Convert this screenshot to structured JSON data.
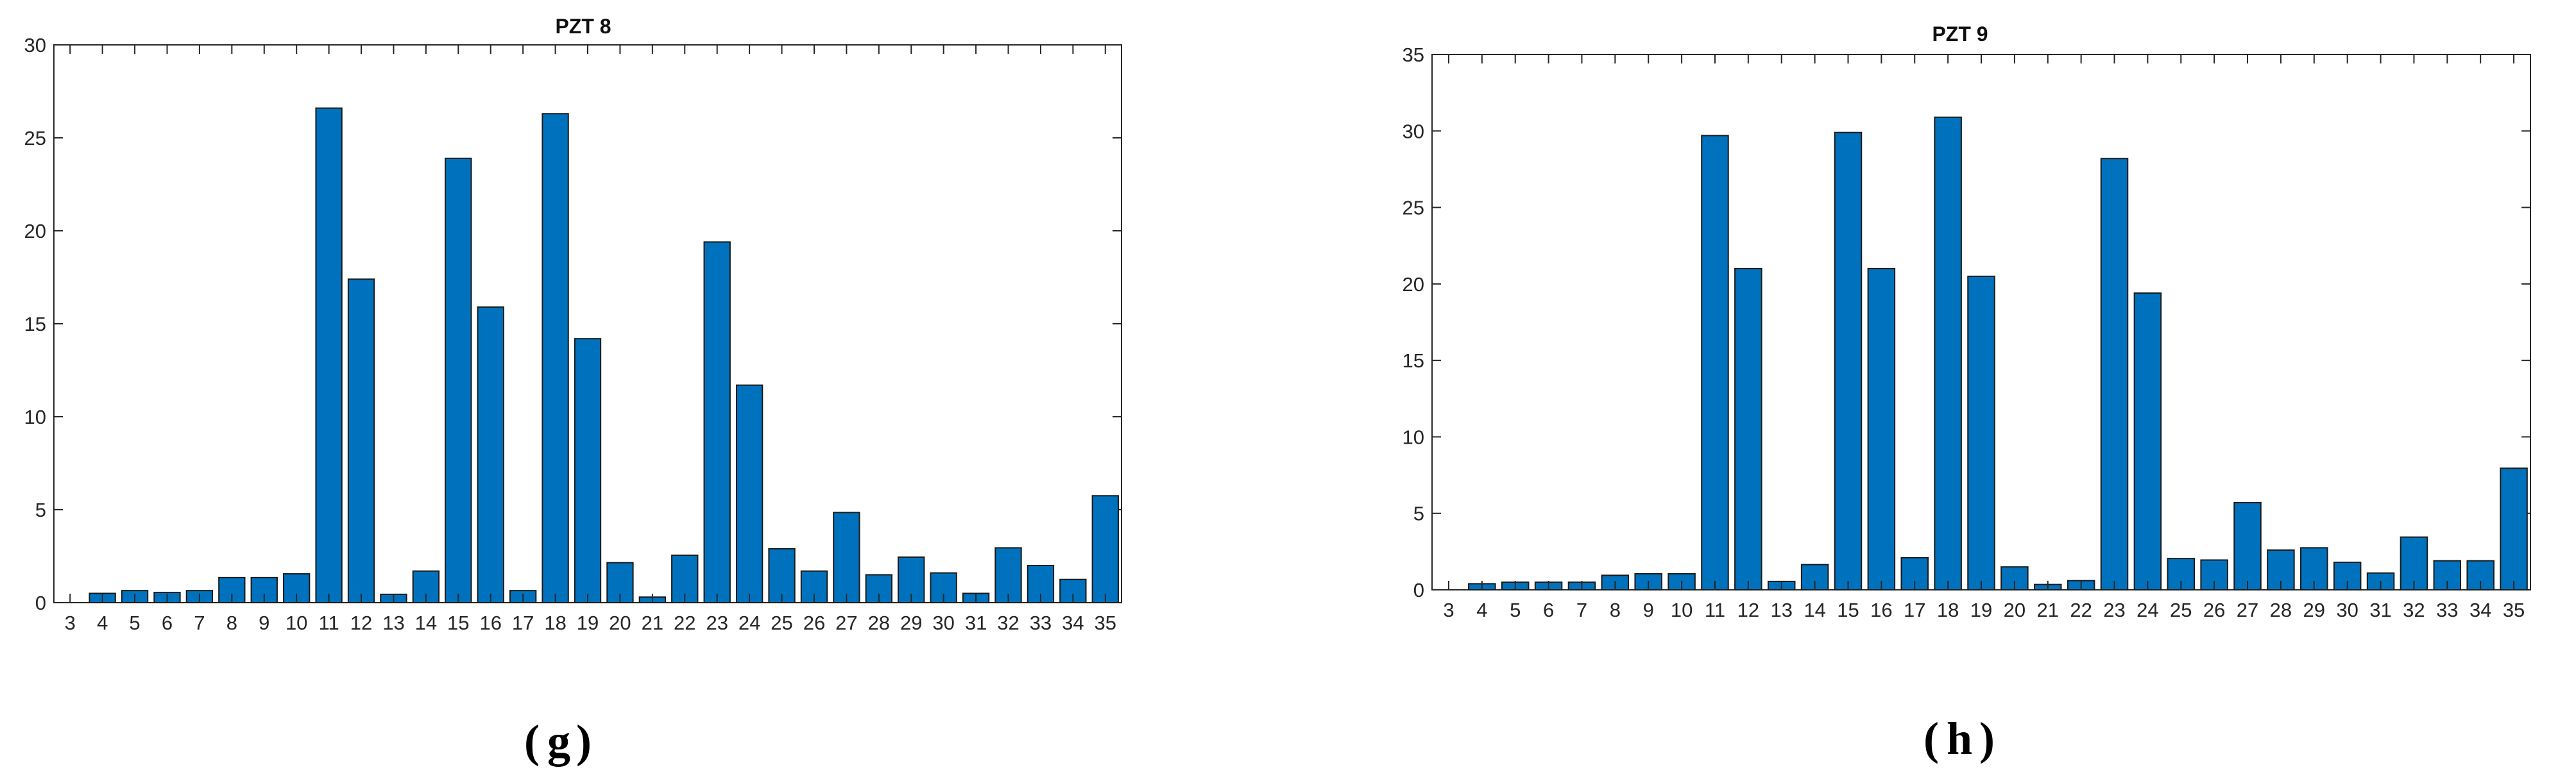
{
  "bar_color": "#0072BD",
  "chart_data": [
    {
      "type": "bar",
      "title": "PZT 8",
      "panel_label": "g",
      "xlabel": "",
      "ylabel": "",
      "categories": [
        "3",
        "4",
        "5",
        "6",
        "7",
        "8",
        "9",
        "10",
        "11",
        "12",
        "13",
        "14",
        "15",
        "16",
        "17",
        "18",
        "19",
        "20",
        "21",
        "22",
        "23",
        "24",
        "25",
        "26",
        "27",
        "28",
        "29",
        "30",
        "31",
        "32",
        "33",
        "34",
        "35"
      ],
      "values": [
        0,
        0.5,
        0.65,
        0.55,
        0.65,
        1.35,
        1.35,
        1.55,
        26.6,
        17.4,
        0.45,
        1.7,
        23.9,
        15.9,
        0.65,
        26.3,
        14.2,
        2.15,
        0.3,
        2.55,
        19.4,
        11.7,
        2.9,
        1.7,
        4.85,
        1.5,
        2.45,
        1.6,
        0.5,
        2.95,
        2.0,
        1.25,
        5.75
      ],
      "ylim": [
        0,
        30
      ],
      "yticks": [
        0,
        5,
        10,
        15,
        20,
        25,
        30
      ]
    },
    {
      "type": "bar",
      "title": "PZT 9",
      "panel_label": "h",
      "xlabel": "",
      "ylabel": "",
      "categories": [
        "3",
        "4",
        "5",
        "6",
        "7",
        "8",
        "9",
        "10",
        "11",
        "12",
        "13",
        "14",
        "15",
        "16",
        "17",
        "18",
        "19",
        "20",
        "21",
        "22",
        "23",
        "24",
        "25",
        "26",
        "27",
        "28",
        "29",
        "30",
        "31",
        "32",
        "33",
        "34",
        "35"
      ],
      "values": [
        0,
        0.4,
        0.5,
        0.5,
        0.5,
        0.95,
        1.05,
        1.05,
        29.7,
        21.0,
        0.55,
        1.65,
        29.9,
        21.0,
        2.1,
        30.9,
        20.5,
        1.5,
        0.35,
        0.6,
        28.2,
        19.4,
        2.05,
        1.95,
        5.7,
        2.6,
        2.75,
        1.8,
        1.1,
        3.45,
        1.9,
        1.9,
        7.95
      ],
      "ylim": [
        0,
        35
      ],
      "yticks": [
        0,
        5,
        10,
        15,
        20,
        25,
        30,
        35
      ]
    }
  ]
}
